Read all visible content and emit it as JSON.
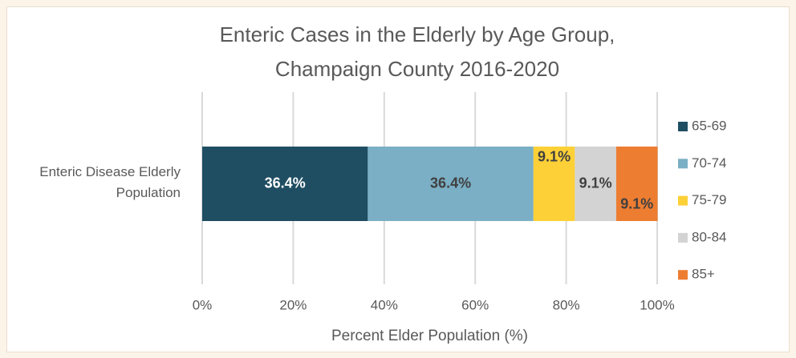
{
  "chart_data": {
    "type": "stacked_bar_horizontal",
    "title": "Enteric Cases in the Elderly by Age Group, Champaign County 2016-2020",
    "categories": [
      "Enteric Disease Elderly Population"
    ],
    "series": [
      {
        "name": "65-69",
        "color": "#1f4e63",
        "values": [
          36.4
        ],
        "value_labels": [
          "36.4%"
        ]
      },
      {
        "name": "70-74",
        "color": "#7aafc5",
        "values": [
          36.4
        ],
        "value_labels": [
          "36.4%"
        ]
      },
      {
        "name": "75-79",
        "color": "#fdd037",
        "values": [
          9.1
        ],
        "value_labels": [
          "9.1%"
        ]
      },
      {
        "name": "80-84",
        "color": "#d3d3d3",
        "values": [
          9.1
        ],
        "value_labels": [
          "9.1%"
        ]
      },
      {
        "name": "85+",
        "color": "#ed7d31",
        "values": [
          9.1
        ],
        "value_labels": [
          "9.1%"
        ]
      }
    ],
    "x_label": "Percent Elder Population (%)",
    "xlim": [
      0,
      100
    ],
    "xticks": [
      {
        "value": 0,
        "label": "0%"
      },
      {
        "value": 20,
        "label": "20%"
      },
      {
        "value": 40,
        "label": "40%"
      },
      {
        "value": 60,
        "label": "60%"
      },
      {
        "value": 80,
        "label": "80%"
      },
      {
        "value": 100,
        "label": "100%"
      }
    ],
    "grid": true,
    "legend": "right"
  }
}
